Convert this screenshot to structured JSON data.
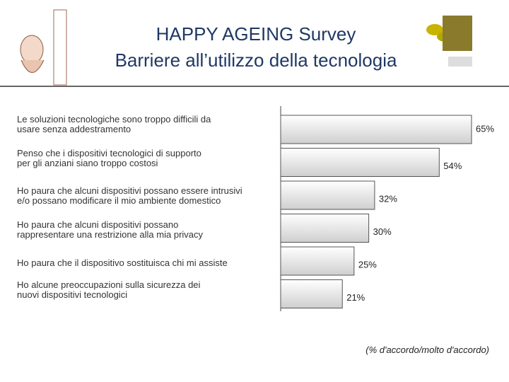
{
  "chart_data": {
    "type": "bar",
    "orientation": "horizontal",
    "title": "HAPPY AGEING Survey",
    "subtitle": "Barriere all’utilizzo della tecnologia",
    "categories": [
      "Le soluzioni tecnologiche sono troppo difficili da\nusare senza addestramento",
      "Penso che i dispositivi tecnologici di supporto\nper gli anziani siano troppo costosi",
      "Ho paura che alcuni dispositivi possano essere intrusivi\ne/o possano modificare il mio ambiente domestico",
      "Ho paura che alcuni dispositivi possano\nrappresentare una restrizione alla mia privacy",
      "Ho paura che il dispositivo sostituisca chi mi assiste",
      "Ho alcune preoccupazioni sulla sicurezza dei\nnuovi dispositivi tecnologici"
    ],
    "values": [
      65,
      54,
      32,
      30,
      25,
      21
    ],
    "value_labels": [
      "65%",
      "54%",
      "32%",
      "30%",
      "25%",
      "21%"
    ],
    "color": "#cfcfcf",
    "note": "(% d'accordo/molto d'accordo)"
  }
}
